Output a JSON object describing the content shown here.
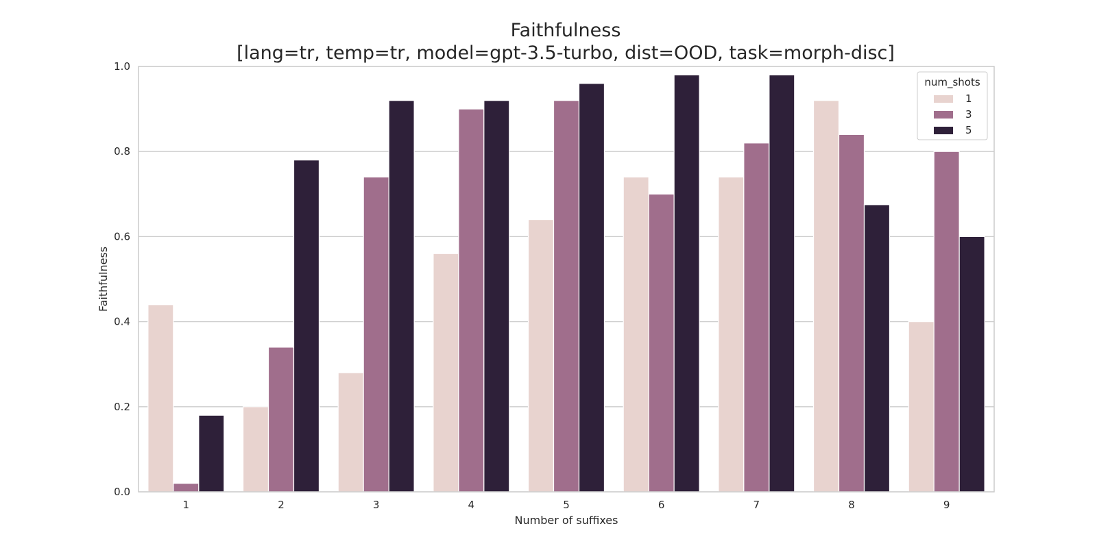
{
  "chart_data": {
    "type": "bar",
    "title": "Faithfulness",
    "subtitle": "[lang=tr, temp=tr, model=gpt-3.5-turbo, dist=OOD, task=morph-disc]",
    "xlabel": "Number of suffixes",
    "ylabel": "Faithfulness",
    "ylim": [
      0,
      1.0
    ],
    "yticks": [
      "0.0",
      "0.2",
      "0.4",
      "0.6",
      "0.8",
      "1.0"
    ],
    "grid": true,
    "legend": {
      "title": "num_shots",
      "placement": "top-right"
    },
    "categories": [
      "1",
      "2",
      "3",
      "4",
      "5",
      "6",
      "7",
      "8",
      "9"
    ],
    "series": [
      {
        "name": "1",
        "color": "#e8d3cf",
        "values": [
          0.44,
          0.2,
          0.28,
          0.56,
          0.64,
          0.74,
          0.74,
          0.92,
          0.4
        ]
      },
      {
        "name": "3",
        "color": "#a06e8c",
        "values": [
          0.02,
          0.34,
          0.74,
          0.9,
          0.92,
          0.7,
          0.82,
          0.84,
          0.8
        ]
      },
      {
        "name": "5",
        "color": "#2e2039",
        "values": [
          0.18,
          0.78,
          0.92,
          0.92,
          0.96,
          0.98,
          0.98,
          0.675,
          0.6
        ]
      }
    ]
  }
}
